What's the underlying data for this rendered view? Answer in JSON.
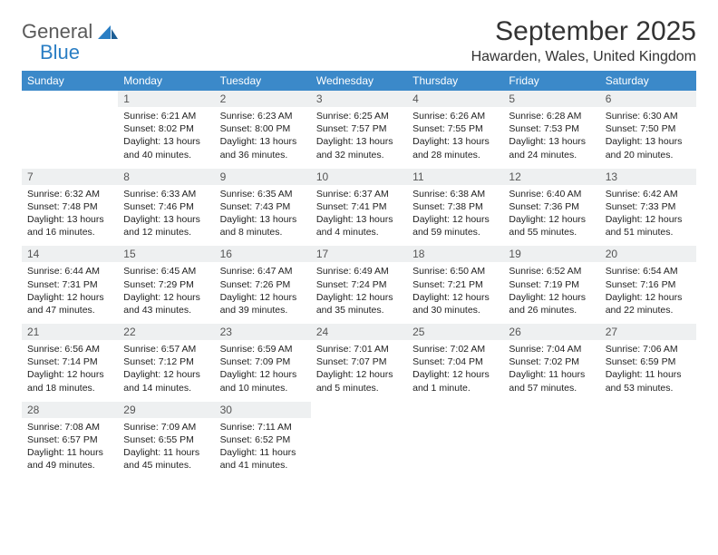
{
  "brand": {
    "line1": "General",
    "line2": "Blue",
    "logo_color": "#2a7ec4",
    "text_color": "#5a5a5a"
  },
  "title": "September 2025",
  "location": "Hawarden, Wales, United Kingdom",
  "colors": {
    "header_bg": "#3b89c9",
    "header_text": "#ffffff",
    "daynum_bg": "#eef0f1",
    "rule": "#2b5d88",
    "body_text": "#222222"
  },
  "day_headers": [
    "Sunday",
    "Monday",
    "Tuesday",
    "Wednesday",
    "Thursday",
    "Friday",
    "Saturday"
  ],
  "weeks": [
    {
      "nums": [
        "",
        "1",
        "2",
        "3",
        "4",
        "5",
        "6"
      ],
      "cells": [
        {
          "sunrise": "",
          "sunset": "",
          "daylight": ""
        },
        {
          "sunrise": "Sunrise: 6:21 AM",
          "sunset": "Sunset: 8:02 PM",
          "daylight": "Daylight: 13 hours and 40 minutes."
        },
        {
          "sunrise": "Sunrise: 6:23 AM",
          "sunset": "Sunset: 8:00 PM",
          "daylight": "Daylight: 13 hours and 36 minutes."
        },
        {
          "sunrise": "Sunrise: 6:25 AM",
          "sunset": "Sunset: 7:57 PM",
          "daylight": "Daylight: 13 hours and 32 minutes."
        },
        {
          "sunrise": "Sunrise: 6:26 AM",
          "sunset": "Sunset: 7:55 PM",
          "daylight": "Daylight: 13 hours and 28 minutes."
        },
        {
          "sunrise": "Sunrise: 6:28 AM",
          "sunset": "Sunset: 7:53 PM",
          "daylight": "Daylight: 13 hours and 24 minutes."
        },
        {
          "sunrise": "Sunrise: 6:30 AM",
          "sunset": "Sunset: 7:50 PM",
          "daylight": "Daylight: 13 hours and 20 minutes."
        }
      ]
    },
    {
      "nums": [
        "7",
        "8",
        "9",
        "10",
        "11",
        "12",
        "13"
      ],
      "cells": [
        {
          "sunrise": "Sunrise: 6:32 AM",
          "sunset": "Sunset: 7:48 PM",
          "daylight": "Daylight: 13 hours and 16 minutes."
        },
        {
          "sunrise": "Sunrise: 6:33 AM",
          "sunset": "Sunset: 7:46 PM",
          "daylight": "Daylight: 13 hours and 12 minutes."
        },
        {
          "sunrise": "Sunrise: 6:35 AM",
          "sunset": "Sunset: 7:43 PM",
          "daylight": "Daylight: 13 hours and 8 minutes."
        },
        {
          "sunrise": "Sunrise: 6:37 AM",
          "sunset": "Sunset: 7:41 PM",
          "daylight": "Daylight: 13 hours and 4 minutes."
        },
        {
          "sunrise": "Sunrise: 6:38 AM",
          "sunset": "Sunset: 7:38 PM",
          "daylight": "Daylight: 12 hours and 59 minutes."
        },
        {
          "sunrise": "Sunrise: 6:40 AM",
          "sunset": "Sunset: 7:36 PM",
          "daylight": "Daylight: 12 hours and 55 minutes."
        },
        {
          "sunrise": "Sunrise: 6:42 AM",
          "sunset": "Sunset: 7:33 PM",
          "daylight": "Daylight: 12 hours and 51 minutes."
        }
      ]
    },
    {
      "nums": [
        "14",
        "15",
        "16",
        "17",
        "18",
        "19",
        "20"
      ],
      "cells": [
        {
          "sunrise": "Sunrise: 6:44 AM",
          "sunset": "Sunset: 7:31 PM",
          "daylight": "Daylight: 12 hours and 47 minutes."
        },
        {
          "sunrise": "Sunrise: 6:45 AM",
          "sunset": "Sunset: 7:29 PM",
          "daylight": "Daylight: 12 hours and 43 minutes."
        },
        {
          "sunrise": "Sunrise: 6:47 AM",
          "sunset": "Sunset: 7:26 PM",
          "daylight": "Daylight: 12 hours and 39 minutes."
        },
        {
          "sunrise": "Sunrise: 6:49 AM",
          "sunset": "Sunset: 7:24 PM",
          "daylight": "Daylight: 12 hours and 35 minutes."
        },
        {
          "sunrise": "Sunrise: 6:50 AM",
          "sunset": "Sunset: 7:21 PM",
          "daylight": "Daylight: 12 hours and 30 minutes."
        },
        {
          "sunrise": "Sunrise: 6:52 AM",
          "sunset": "Sunset: 7:19 PM",
          "daylight": "Daylight: 12 hours and 26 minutes."
        },
        {
          "sunrise": "Sunrise: 6:54 AM",
          "sunset": "Sunset: 7:16 PM",
          "daylight": "Daylight: 12 hours and 22 minutes."
        }
      ]
    },
    {
      "nums": [
        "21",
        "22",
        "23",
        "24",
        "25",
        "26",
        "27"
      ],
      "cells": [
        {
          "sunrise": "Sunrise: 6:56 AM",
          "sunset": "Sunset: 7:14 PM",
          "daylight": "Daylight: 12 hours and 18 minutes."
        },
        {
          "sunrise": "Sunrise: 6:57 AM",
          "sunset": "Sunset: 7:12 PM",
          "daylight": "Daylight: 12 hours and 14 minutes."
        },
        {
          "sunrise": "Sunrise: 6:59 AM",
          "sunset": "Sunset: 7:09 PM",
          "daylight": "Daylight: 12 hours and 10 minutes."
        },
        {
          "sunrise": "Sunrise: 7:01 AM",
          "sunset": "Sunset: 7:07 PM",
          "daylight": "Daylight: 12 hours and 5 minutes."
        },
        {
          "sunrise": "Sunrise: 7:02 AM",
          "sunset": "Sunset: 7:04 PM",
          "daylight": "Daylight: 12 hours and 1 minute."
        },
        {
          "sunrise": "Sunrise: 7:04 AM",
          "sunset": "Sunset: 7:02 PM",
          "daylight": "Daylight: 11 hours and 57 minutes."
        },
        {
          "sunrise": "Sunrise: 7:06 AM",
          "sunset": "Sunset: 6:59 PM",
          "daylight": "Daylight: 11 hours and 53 minutes."
        }
      ]
    },
    {
      "nums": [
        "28",
        "29",
        "30",
        "",
        "",
        "",
        ""
      ],
      "cells": [
        {
          "sunrise": "Sunrise: 7:08 AM",
          "sunset": "Sunset: 6:57 PM",
          "daylight": "Daylight: 11 hours and 49 minutes."
        },
        {
          "sunrise": "Sunrise: 7:09 AM",
          "sunset": "Sunset: 6:55 PM",
          "daylight": "Daylight: 11 hours and 45 minutes."
        },
        {
          "sunrise": "Sunrise: 7:11 AM",
          "sunset": "Sunset: 6:52 PM",
          "daylight": "Daylight: 11 hours and 41 minutes."
        },
        {
          "sunrise": "",
          "sunset": "",
          "daylight": ""
        },
        {
          "sunrise": "",
          "sunset": "",
          "daylight": ""
        },
        {
          "sunrise": "",
          "sunset": "",
          "daylight": ""
        },
        {
          "sunrise": "",
          "sunset": "",
          "daylight": ""
        }
      ]
    }
  ]
}
